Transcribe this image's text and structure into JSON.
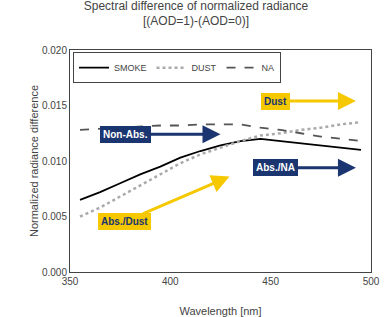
{
  "chart_data": {
    "type": "line",
    "title": "Spectral difference of normalized radiance",
    "subtitle": "[(AOD=1)-(AOD=0)]",
    "x_label": "Wavelength [nm]",
    "y_label": "Normalized radiance difference",
    "xlim": [
      350,
      500
    ],
    "ylim": [
      0.0,
      0.02
    ],
    "xticks": [
      350,
      400,
      450,
      500
    ],
    "yticks": [
      {
        "value": 0.0,
        "label": "0.000"
      },
      {
        "value": 0.005,
        "label": "0.005"
      },
      {
        "value": 0.01,
        "label": "0.010"
      },
      {
        "value": 0.015,
        "label": "0.015"
      },
      {
        "value": 0.02,
        "label": "0.020"
      }
    ],
    "x": [
      355,
      365,
      375,
      385,
      395,
      405,
      415,
      425,
      435,
      445,
      455,
      465,
      475,
      485,
      495
    ],
    "series": [
      {
        "name": "SMOKE",
        "color": "#000000",
        "line_style": "solid",
        "values": [
          0.0065,
          0.0072,
          0.008,
          0.0088,
          0.0095,
          0.0103,
          0.0109,
          0.0114,
          0.0118,
          0.012,
          0.0118,
          0.0116,
          0.0114,
          0.0112,
          0.011
        ]
      },
      {
        "name": "DUST",
        "color": "#aaaaaa",
        "line_style": "dotted",
        "values": [
          0.005,
          0.0058,
          0.0068,
          0.0078,
          0.0088,
          0.0098,
          0.0106,
          0.0112,
          0.0118,
          0.0123,
          0.0125,
          0.0128,
          0.013,
          0.0133,
          0.0135
        ]
      },
      {
        "name": "NA",
        "color": "#555555",
        "line_style": "dashed",
        "values": [
          0.0128,
          0.0129,
          0.013,
          0.0131,
          0.0132,
          0.0132,
          0.0133,
          0.0133,
          0.0133,
          0.013,
          0.0128,
          0.0125,
          0.0122,
          0.012,
          0.0118
        ]
      }
    ],
    "annotations": [
      "Non-Abs.",
      "Abs./Dust",
      "Dust",
      "Abs./NA"
    ],
    "legend": "upper left",
    "grid": false
  }
}
